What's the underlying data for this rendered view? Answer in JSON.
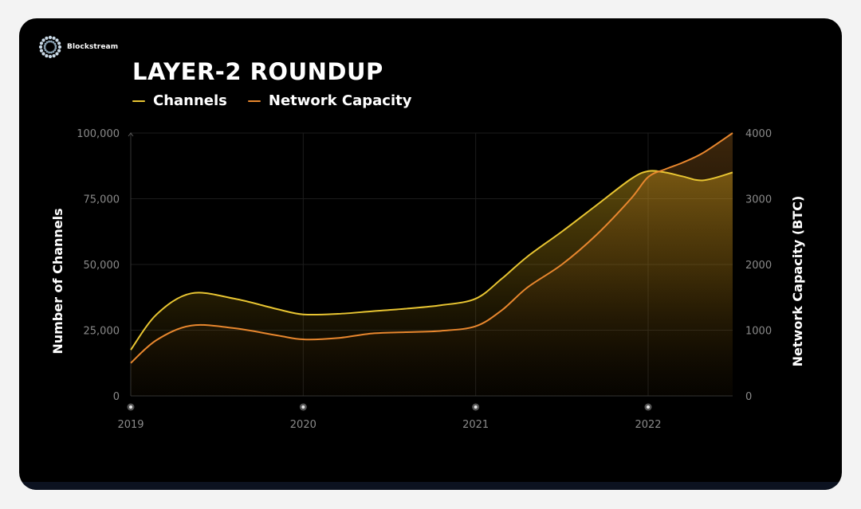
{
  "brand": {
    "name": "Blockstream"
  },
  "chart_data": {
    "type": "area",
    "title": "LAYER-2 ROUNDUP",
    "x_ticks": [
      "2019",
      "2020",
      "2021",
      "2022"
    ],
    "ylabel": "Number of Channels",
    "ylabel_right": "Network Capacity (BTC)",
    "y_ticks": [
      "0",
      "25,000",
      "50,000",
      "75,000",
      "100,000"
    ],
    "y2_ticks": [
      "0",
      "1000",
      "2000",
      "3000",
      "4000"
    ],
    "ylim": [
      0,
      100000
    ],
    "y2lim": [
      0,
      4000
    ],
    "xlim": [
      2019,
      2022.49
    ],
    "grid": true,
    "series": [
      {
        "name": "Channels",
        "axis": "left",
        "color": "#e8c532",
        "x": [
          2019.0,
          2019.15,
          2019.35,
          2019.6,
          2019.85,
          2020.0,
          2020.2,
          2020.4,
          2020.6,
          2020.8,
          2021.0,
          2021.15,
          2021.3,
          2021.5,
          2021.7,
          2021.9,
          2022.0,
          2022.1,
          2022.2,
          2022.32,
          2022.49
        ],
        "values": [
          17500,
          31000,
          39000,
          37000,
          33000,
          31000,
          31200,
          32200,
          33200,
          34500,
          37000,
          44500,
          53000,
          62500,
          72500,
          82500,
          85500,
          85000,
          83500,
          82000,
          85000
        ]
      },
      {
        "name": "Network Capacity",
        "axis": "right",
        "color": "#e8872e",
        "x": [
          2019.0,
          2019.15,
          2019.35,
          2019.6,
          2019.85,
          2020.0,
          2020.2,
          2020.4,
          2020.6,
          2020.8,
          2021.0,
          2021.15,
          2021.3,
          2021.5,
          2021.7,
          2021.9,
          2022.0,
          2022.1,
          2022.2,
          2022.32,
          2022.49
        ],
        "values": [
          500,
          850,
          1070,
          1030,
          920,
          860,
          880,
          950,
          970,
          990,
          1060,
          1300,
          1650,
          2000,
          2450,
          3000,
          3330,
          3450,
          3550,
          3700,
          4000
        ]
      }
    ]
  }
}
